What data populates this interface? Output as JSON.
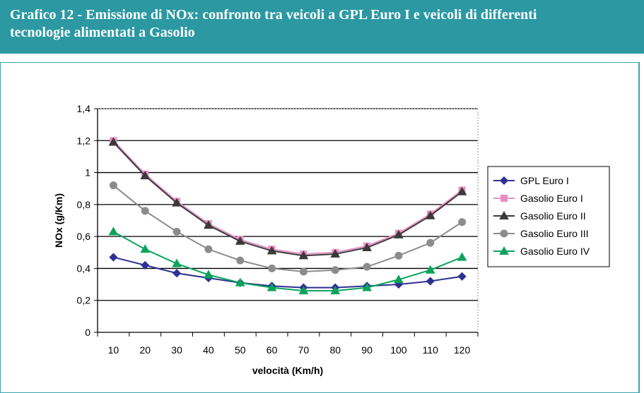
{
  "header": {
    "line1": "Grafico 12 - Emissione di NOx: confronto tra veicoli a GPL Euro I e veicoli di differenti",
    "line2": "tecnologie alimentati a Gasolio"
  },
  "chart_data": {
    "type": "line",
    "title": "Grafico 12 - Emissione di NOx: confronto tra veicoli a GPL Euro I e veicoli di differenti tecnologie alimentati a Gasolio",
    "xlabel": "velocità (Km/h)",
    "ylabel": "NOx (g/Km)",
    "x": [
      10,
      20,
      30,
      40,
      50,
      60,
      70,
      80,
      90,
      100,
      110,
      120
    ],
    "ylim": [
      0,
      1.4
    ],
    "yticks": [
      "0",
      "0,2",
      "0,4",
      "0,6",
      "0,8",
      "1",
      "1,2",
      "1,4"
    ],
    "grid": "horizontal",
    "legend_position": "right",
    "series": [
      {
        "name": "GPL Euro I",
        "color": "#2e3192",
        "marker": "diamond",
        "values": [
          0.47,
          0.42,
          0.37,
          0.34,
          0.31,
          0.29,
          0.28,
          0.28,
          0.29,
          0.3,
          0.32,
          0.35
        ]
      },
      {
        "name": "Gasolio Euro I",
        "color": "#e98fc4",
        "marker": "square",
        "values": [
          1.2,
          0.99,
          0.82,
          0.68,
          0.58,
          0.52,
          0.49,
          0.5,
          0.54,
          0.62,
          0.74,
          0.89
        ]
      },
      {
        "name": "Gasolio Euro II",
        "color": "#3a3a3a",
        "marker": "triangle",
        "values": [
          1.19,
          0.98,
          0.81,
          0.67,
          0.57,
          0.51,
          0.48,
          0.49,
          0.53,
          0.61,
          0.73,
          0.88
        ]
      },
      {
        "name": "Gasolio Euro III",
        "color": "#8c8c8c",
        "marker": "circle",
        "values": [
          0.92,
          0.76,
          0.63,
          0.52,
          0.45,
          0.4,
          0.38,
          0.39,
          0.41,
          0.48,
          0.56,
          0.69
        ]
      },
      {
        "name": "Gasolio Euro IV",
        "color": "#0aa35a",
        "marker": "triangle",
        "values": [
          0.63,
          0.52,
          0.43,
          0.36,
          0.31,
          0.28,
          0.26,
          0.26,
          0.28,
          0.33,
          0.39,
          0.47
        ]
      }
    ]
  }
}
